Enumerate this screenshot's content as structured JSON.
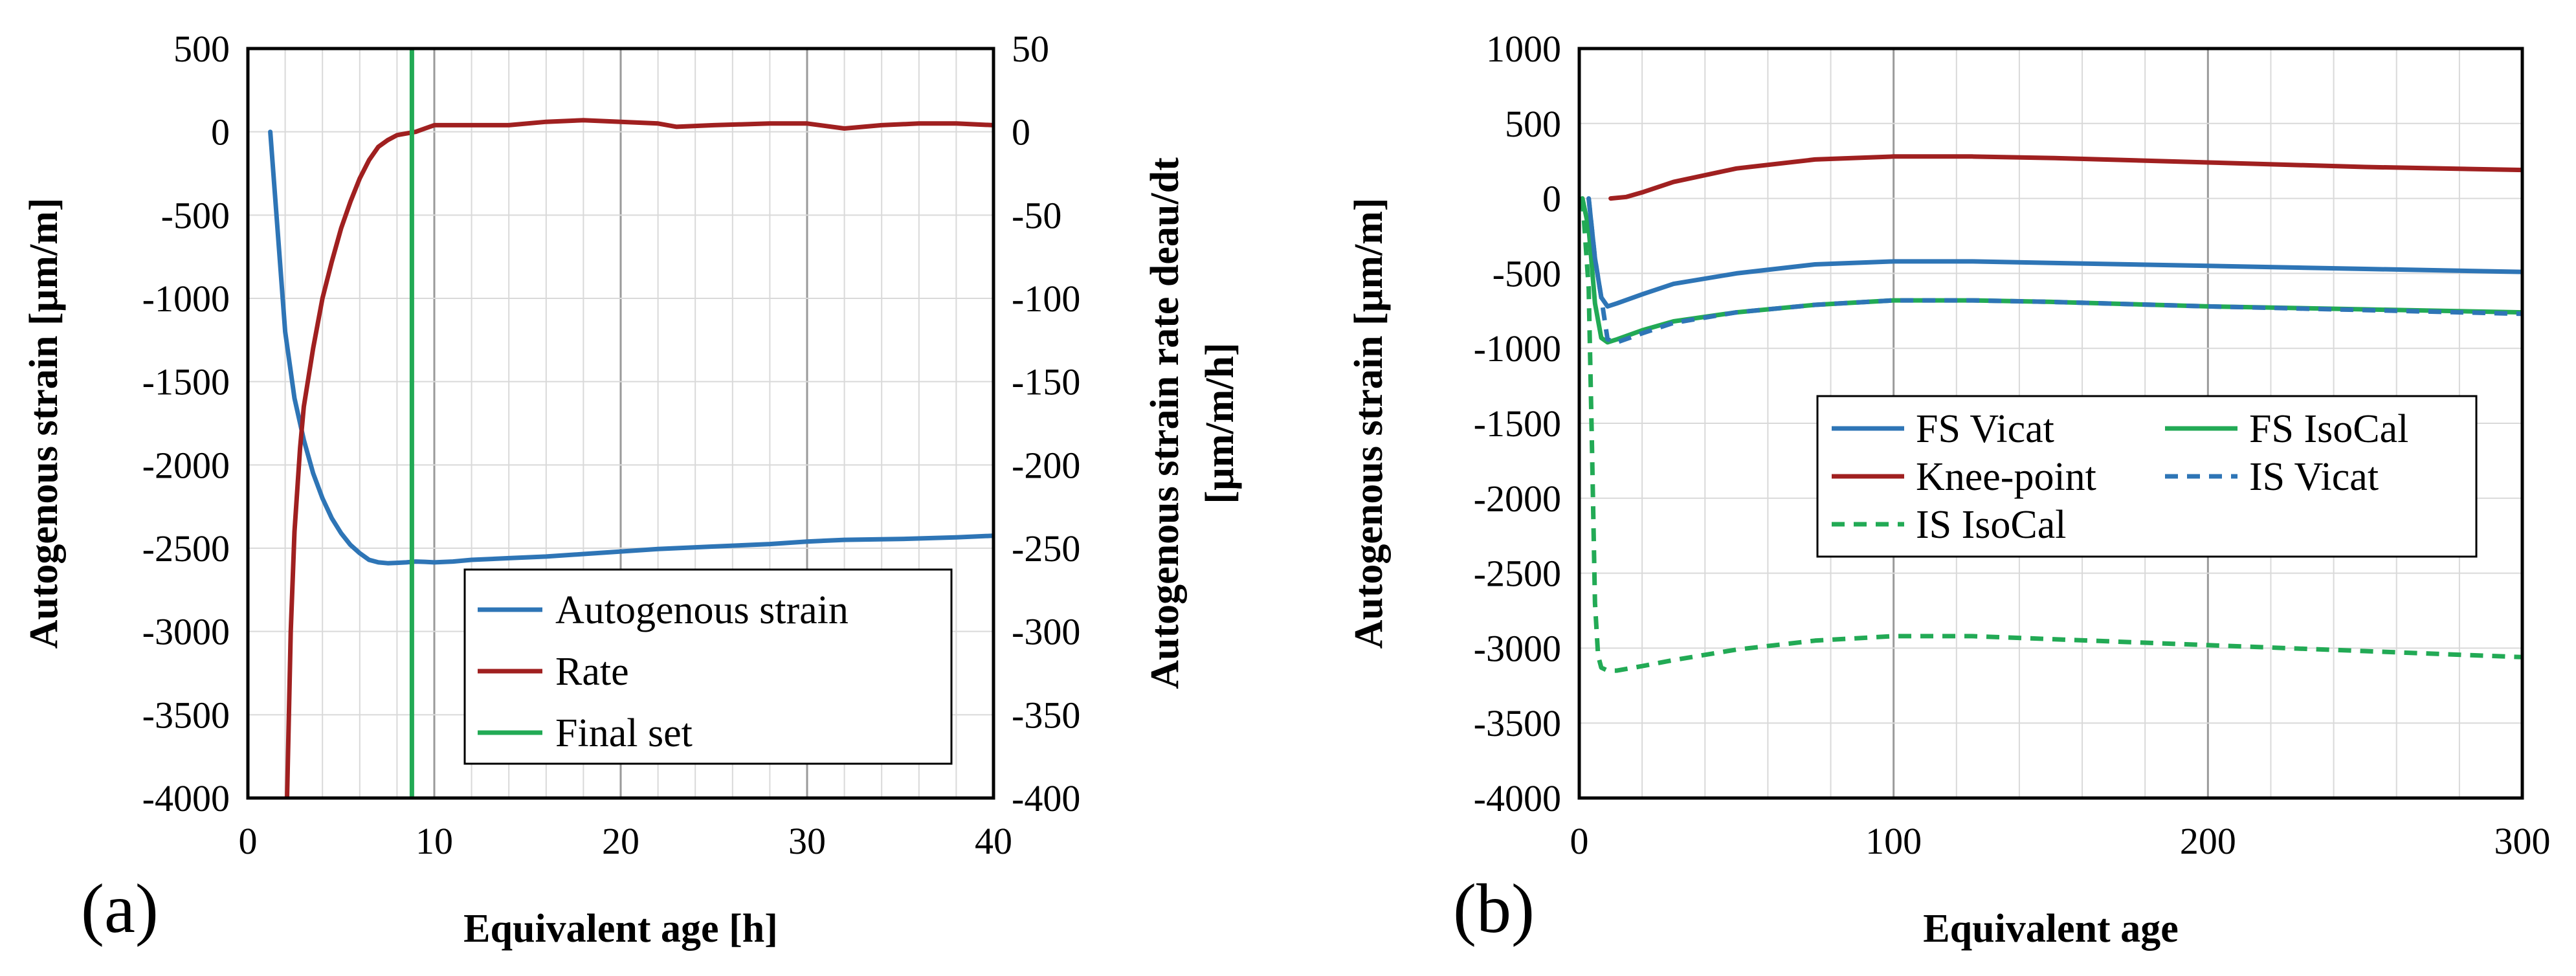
{
  "chart_data": [
    {
      "type": "line",
      "panel_label": "(a)",
      "xlabel": "Equivalent age [h]",
      "ylabel": "Autogenous strain [µm/m]",
      "y2label_line1": "Autogenous strain rate deau/dt",
      "y2label_line2": "[µm/m/h]",
      "xlim": [
        0,
        40
      ],
      "ylim": [
        -4000,
        500
      ],
      "y2lim": [
        -400,
        50
      ],
      "xticks": [
        "0",
        "10",
        "20",
        "30",
        "40"
      ],
      "yticks": [
        "500",
        "0",
        "-500",
        "-1000",
        "-1500",
        "-2000",
        "-2500",
        "-3000",
        "-3500",
        "-4000"
      ],
      "y2ticks": [
        "50",
        "0",
        "-50",
        "-100",
        "-150",
        "-200",
        "-250",
        "-300",
        "-350",
        "-400"
      ],
      "grid": true,
      "legend": "bottom-right",
      "series": [
        {
          "name": "Autogenous strain",
          "axis": "left",
          "color": "#2E75B6",
          "dash": "solid",
          "x": [
            1.2,
            1.6,
            2.0,
            2.5,
            3.0,
            3.5,
            4.0,
            4.5,
            5.0,
            5.5,
            6.0,
            6.5,
            7.0,
            7.5,
            8.0,
            8.5,
            9.0,
            9.5,
            10,
            11,
            12,
            14,
            16,
            18,
            20,
            22,
            25,
            28,
            30,
            32,
            35,
            38,
            40
          ],
          "y": [
            0,
            -600,
            -1200,
            -1600,
            -1850,
            -2050,
            -2200,
            -2320,
            -2410,
            -2480,
            -2530,
            -2570,
            -2585,
            -2590,
            -2588,
            -2585,
            -2580,
            -2582,
            -2585,
            -2580,
            -2570,
            -2560,
            -2550,
            -2535,
            -2520,
            -2505,
            -2490,
            -2475,
            -2460,
            -2450,
            -2445,
            -2435,
            -2425
          ]
        },
        {
          "name": "Rate",
          "axis": "right",
          "color": "#A02020",
          "dash": "solid",
          "x": [
            2.1,
            2.3,
            2.5,
            2.8,
            3.0,
            3.5,
            4.0,
            4.5,
            5.0,
            5.5,
            6.0,
            6.5,
            7.0,
            7.5,
            8.0,
            8.5,
            9.0,
            9.5,
            10,
            11,
            12,
            14,
            16,
            18,
            20,
            22,
            23,
            25,
            28,
            30,
            32,
            34,
            36,
            38,
            40
          ],
          "y": [
            -400,
            -300,
            -240,
            -190,
            -165,
            -130,
            -100,
            -78,
            -58,
            -42,
            -28,
            -17,
            -9,
            -5,
            -2,
            -1,
            0,
            2,
            4,
            4,
            4,
            4,
            6,
            7,
            6,
            5,
            3,
            4,
            5,
            5,
            2,
            4,
            5,
            5,
            4
          ]
        },
        {
          "name": "Final set",
          "axis": "left",
          "color": "#22AA55",
          "dash": "solid",
          "x": [
            8.8,
            8.8
          ],
          "y": [
            500,
            -4000
          ]
        }
      ]
    },
    {
      "type": "line",
      "panel_label": "(b)",
      "xlabel": "Equivalent age",
      "ylabel": "Autogenous strain [µm/m]",
      "xlim": [
        0,
        300
      ],
      "ylim": [
        -4000,
        1000
      ],
      "xticks": [
        "0",
        "100",
        "200",
        "300"
      ],
      "yticks": [
        "1000",
        "500",
        "0",
        "-500",
        "-1000",
        "-1500",
        "-2000",
        "-2500",
        "-3000",
        "-3500",
        "-4000"
      ],
      "grid": true,
      "legend": "center-right",
      "series": [
        {
          "name": "FS Vicat",
          "color": "#2E75B6",
          "dash": "solid",
          "x": [
            3,
            5,
            7,
            9,
            12,
            20,
            30,
            50,
            75,
            100,
            125,
            150,
            200,
            250,
            300
          ],
          "y": [
            0,
            -400,
            -660,
            -720,
            -700,
            -640,
            -570,
            -500,
            -440,
            -420,
            -420,
            -430,
            -450,
            -470,
            -490
          ]
        },
        {
          "name": "FS IsoCal",
          "color": "#22AA55",
          "dash": "solid",
          "x": [
            1,
            3,
            5,
            7,
            9,
            12,
            20,
            30,
            50,
            75,
            100,
            125,
            150,
            200,
            250,
            300
          ],
          "y": [
            0,
            -200,
            -700,
            -930,
            -960,
            -940,
            -880,
            -820,
            -760,
            -710,
            -680,
            -680,
            -690,
            -720,
            -740,
            -760
          ]
        },
        {
          "name": "Knee-point",
          "color": "#A02020",
          "dash": "solid",
          "x": [
            10,
            15,
            20,
            30,
            50,
            75,
            100,
            125,
            150,
            175,
            200,
            250,
            300
          ],
          "y": [
            0,
            10,
            40,
            110,
            200,
            260,
            280,
            280,
            270,
            255,
            240,
            210,
            190
          ]
        },
        {
          "name": "IS Vicat",
          "color": "#2E75B6",
          "dash": "dashed",
          "x": [
            3,
            5,
            7,
            9,
            12,
            20,
            30,
            50,
            75,
            100,
            125,
            150,
            200,
            250,
            300
          ],
          "y": [
            0,
            -400,
            -660,
            -940,
            -960,
            -900,
            -830,
            -760,
            -710,
            -680,
            -680,
            -690,
            -720,
            -745,
            -770
          ]
        },
        {
          "name": "IS IsoCal",
          "color": "#22AA55",
          "dash": "dashed",
          "x": [
            1,
            3,
            4,
            5,
            6,
            7,
            9,
            12,
            20,
            30,
            50,
            75,
            100,
            125,
            150,
            175,
            200,
            225,
            250,
            275,
            300
          ],
          "y": [
            0,
            -600,
            -1600,
            -2700,
            -3050,
            -3130,
            -3150,
            -3150,
            -3120,
            -3080,
            -3010,
            -2950,
            -2920,
            -2920,
            -2940,
            -2960,
            -2980,
            -3000,
            -3020,
            -3040,
            -3060
          ]
        }
      ]
    }
  ]
}
